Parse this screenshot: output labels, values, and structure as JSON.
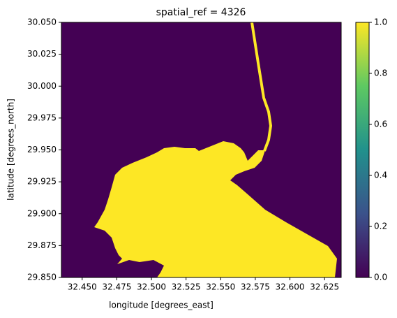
{
  "chart_data": {
    "type": "raster",
    "title": "spatial_ref = 4326",
    "x_label": "longitude [degrees_east]",
    "y_label": "latitude [degrees_north]",
    "xlim": [
      32.435,
      32.637
    ],
    "ylim": [
      29.85,
      30.05
    ],
    "xticks": [
      {
        "value": 32.45,
        "label": "32.450"
      },
      {
        "value": 32.475,
        "label": "32.475"
      },
      {
        "value": 32.5,
        "label": "32.500"
      },
      {
        "value": 32.525,
        "label": "32.525"
      },
      {
        "value": 32.55,
        "label": "32.550"
      },
      {
        "value": 32.575,
        "label": "32.575"
      },
      {
        "value": 32.6,
        "label": "32.600"
      },
      {
        "value": 32.625,
        "label": "32.625"
      }
    ],
    "yticks": [
      {
        "value": 29.85,
        "label": "29.850"
      },
      {
        "value": 29.875,
        "label": "29.875"
      },
      {
        "value": 29.9,
        "label": "29.900"
      },
      {
        "value": 29.925,
        "label": "29.925"
      },
      {
        "value": 29.95,
        "label": "29.950"
      },
      {
        "value": 29.975,
        "label": "29.975"
      },
      {
        "value": 30,
        "label": "30.000"
      },
      {
        "value": 30.025,
        "label": "30.025"
      },
      {
        "value": 30.05,
        "label": "30.050"
      }
    ],
    "clim": [
      0,
      1
    ],
    "cticks": [
      {
        "value": 0,
        "label": "0.0"
      },
      0.2,
      0.4,
      0.6,
      0.8,
      {
        "value": 1,
        "label": "1.0"
      }
    ],
    "colormap": [
      "#440154",
      "#3b528b",
      "#21918c",
      "#5ec962",
      "#fde725"
    ]
  }
}
